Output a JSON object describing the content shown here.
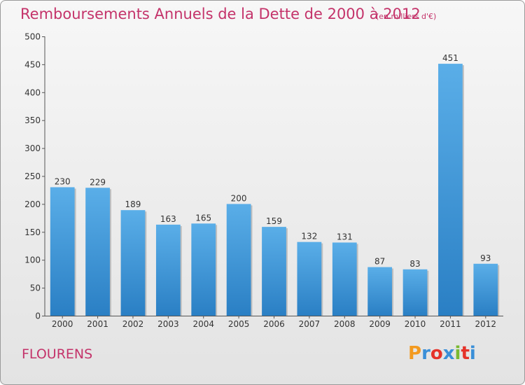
{
  "header": {
    "title": "Remboursements Annuels de la Dette de 2000 à 2012",
    "subtitle": "(en milliers d'€)"
  },
  "footer": {
    "commune": "FLOURENS",
    "logo_text": "Proxiti",
    "logo_colors": [
      "#f39a1f",
      "#3a8fd8",
      "#e5332a",
      "#3a8fd8",
      "#79b931",
      "#e5332a",
      "#3a8fd8"
    ]
  },
  "colors": {
    "accent": "#c4336a",
    "bar_top": "#5aaee8",
    "bar_bottom": "#2a7fc4"
  },
  "chart_data": {
    "type": "bar",
    "categories": [
      "2000",
      "2001",
      "2002",
      "2003",
      "2004",
      "2005",
      "2006",
      "2007",
      "2008",
      "2009",
      "2010",
      "2011",
      "2012"
    ],
    "values": [
      230,
      229,
      189,
      163,
      165,
      200,
      159,
      132,
      131,
      87,
      83,
      451,
      93
    ],
    "title": "Remboursements Annuels de la Dette de 2000 à 2012",
    "ylim": [
      0,
      500
    ],
    "yticks": [
      0,
      50,
      100,
      150,
      200,
      250,
      300,
      350,
      400,
      450,
      500
    ],
    "grid": false,
    "data_labels": true
  }
}
